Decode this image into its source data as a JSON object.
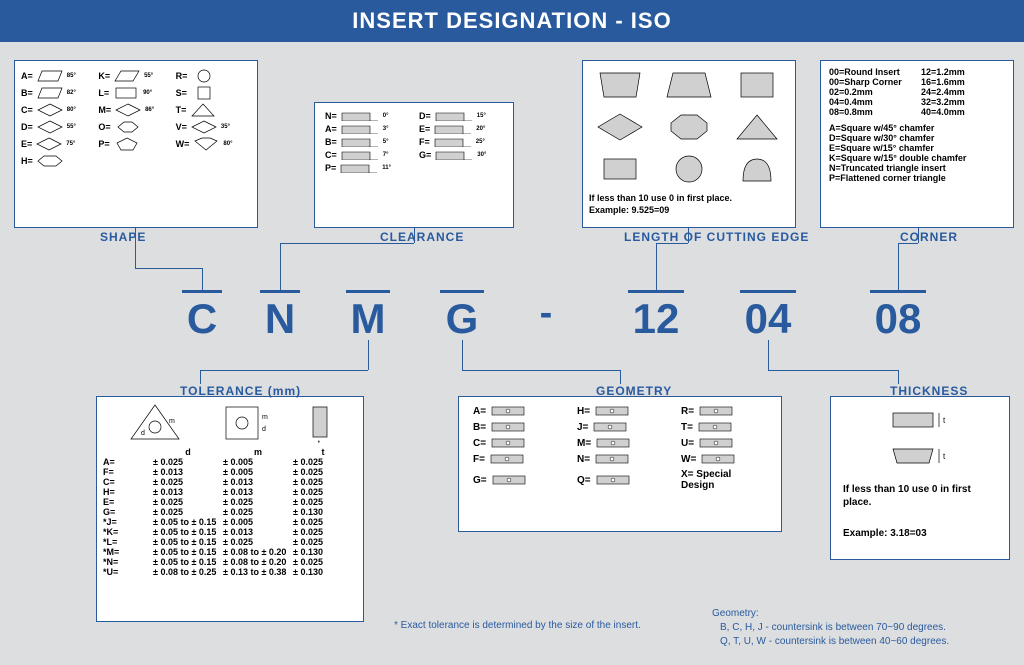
{
  "title": "INSERT DESIGNATION - ISO",
  "code": {
    "c1": "C",
    "c2": "N",
    "c3": "M",
    "c4": "G",
    "c5": "-",
    "c6": "12",
    "c7": "04",
    "c8": "08"
  },
  "labels": {
    "shape": "SHAPE",
    "clearance": "CLEARANCE",
    "tolerance": "TOLERANCE (mm)",
    "geometry": "GEOMETRY",
    "lcutting": "LENGTH OF CUTTING EDGE",
    "thickness": "THICKNESS",
    "corner": "CORNER"
  },
  "shape": [
    {
      "l": "A=",
      "a": "85°"
    },
    {
      "l": "K=",
      "a": "55°"
    },
    {
      "l": "R=",
      "a": ""
    },
    {
      "l": "B=",
      "a": "82°"
    },
    {
      "l": "L=",
      "a": "90°"
    },
    {
      "l": "S=",
      "a": ""
    },
    {
      "l": "C=",
      "a": "80°"
    },
    {
      "l": "M=",
      "a": "86°"
    },
    {
      "l": "T=",
      "a": ""
    },
    {
      "l": "D=",
      "a": "55°"
    },
    {
      "l": "O=",
      "a": ""
    },
    {
      "l": "V=",
      "a": "35°"
    },
    {
      "l": "E=",
      "a": "75°"
    },
    {
      "l": "P=",
      "a": ""
    },
    {
      "l": "W=",
      "a": "80°"
    },
    {
      "l": "H=",
      "a": ""
    }
  ],
  "clearance": [
    {
      "l": "N=",
      "a": "0°"
    },
    {
      "l": "D=",
      "a": "15°"
    },
    {
      "l": "A=",
      "a": "3°"
    },
    {
      "l": "E=",
      "a": "20°"
    },
    {
      "l": "B=",
      "a": "5°"
    },
    {
      "l": "F=",
      "a": "25°"
    },
    {
      "l": "C=",
      "a": "7°"
    },
    {
      "l": "G=",
      "a": "30°"
    },
    {
      "l": "P=",
      "a": "11°"
    }
  ],
  "tolerance": {
    "hdr": {
      "c0": "",
      "c1": "d",
      "c2": "m",
      "c3": "t"
    },
    "rows": [
      {
        "n": "A=",
        "d": "± 0.025",
        "m": "± 0.005",
        "t": "± 0.025"
      },
      {
        "n": "F=",
        "d": "± 0.013",
        "m": "± 0.005",
        "t": "± 0.025"
      },
      {
        "n": "C=",
        "d": "± 0.025",
        "m": "± 0.013",
        "t": "± 0.025"
      },
      {
        "n": "H=",
        "d": "± 0.013",
        "m": "± 0.013",
        "t": "± 0.025"
      },
      {
        "n": "E=",
        "d": "± 0.025",
        "m": "± 0.025",
        "t": "± 0.025"
      },
      {
        "n": "G=",
        "d": "± 0.025",
        "m": "± 0.025",
        "t": "± 0.130"
      },
      {
        "n": "*J=",
        "d": "± 0.05 to ± 0.15",
        "m": "± 0.005",
        "t": "± 0.025"
      },
      {
        "n": "*K=",
        "d": "± 0.05 to ± 0.15",
        "m": "± 0.013",
        "t": "± 0.025"
      },
      {
        "n": "*L=",
        "d": "± 0.05 to ± 0.15",
        "m": "± 0.025",
        "t": "± 0.025"
      },
      {
        "n": "*M=",
        "d": "± 0.05 to ± 0.15",
        "m": "± 0.08 to ± 0.20",
        "t": "± 0.130"
      },
      {
        "n": "*N=",
        "d": "± 0.05 to ± 0.15",
        "m": "± 0.08 to ± 0.20",
        "t": "± 0.025"
      },
      {
        "n": "*U=",
        "d": "± 0.08 to ± 0.25",
        "m": "± 0.13 to ± 0.38",
        "t": "± 0.130"
      }
    ]
  },
  "geometry": [
    "A=",
    "H=",
    "R=",
    "B=",
    "J=",
    "T=",
    "C=",
    "M=",
    "U=",
    "F=",
    "N=",
    "W=",
    "G=",
    "Q=",
    "X= Special Design"
  ],
  "loc_note1": "If less than 10 use 0 in first place.",
  "loc_note2": "Example: 9.525=09",
  "corner_left": [
    "00=Round Insert",
    "00=Sharp Corner",
    "02=0.2mm",
    "04=0.4mm",
    "08=0.8mm"
  ],
  "corner_right": [
    "12=1.2mm",
    "16=1.6mm",
    "24=2.4mm",
    "32=3.2mm",
    "40=4.0mm"
  ],
  "corner_notes": [
    "A=Square w/45° chamfer",
    "D=Square w/30° chamfer",
    "E=Square w/15° chamfer",
    "K=Square w/15° double chamfer",
    "N=Truncated triangle insert",
    "P=Flattened corner triangle"
  ],
  "thick_note1": "If less than 10 use 0 in first place.",
  "thick_note2": "Example: 3.18=03",
  "footnote1": "* Exact tolerance is determined by the size of the insert.",
  "footnote2_hdr": "Geometry:",
  "footnote2_a": "B, C, H, J - countersink is between 70~90 degrees.",
  "footnote2_b": "Q, T, U, W - countersink is between 40~60 degrees.",
  "colors": {
    "blue": "#2a5a9e",
    "bg": "#dcdee0",
    "white": "#ffffff",
    "gray": "#c0c0c0"
  }
}
